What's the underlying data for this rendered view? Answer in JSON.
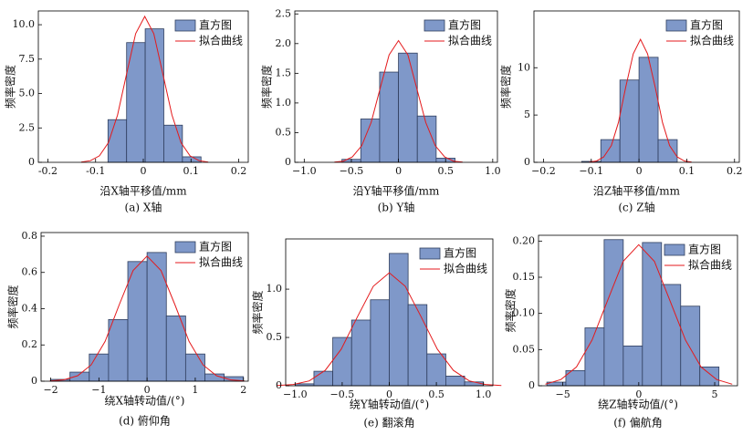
{
  "chart_data": [
    {
      "type": "histogram",
      "title": "(a) X轴",
      "x_label": "沿X轴平移值/mm",
      "y_label": "频率密度",
      "bins": [
        -0.074,
        -0.035,
        0.004,
        0.043,
        0.082,
        0.121
      ],
      "series": [
        {
          "name": "直方图",
          "color": "#7f98c9",
          "values": [
            3.1,
            8.7,
            9.7,
            2.7,
            0.4
          ]
        },
        {
          "name": "拟合曲线",
          "color": "#e41a1c",
          "type": "line",
          "x": [
            -0.13,
            -0.111,
            -0.092,
            -0.073,
            -0.054,
            -0.035,
            -0.016,
            0.003,
            0.022,
            0.041,
            0.06,
            0.079,
            0.098,
            0.117,
            0.136
          ],
          "values": [
            0.02,
            0.12,
            0.47,
            1.43,
            3.44,
            6.43,
            9.35,
            10.6,
            9.35,
            6.43,
            3.44,
            1.43,
            0.47,
            0.12,
            0.02
          ]
        }
      ],
      "xlim": [
        -0.22,
        0.22
      ],
      "xticks": [
        -0.2,
        -0.1,
        0,
        0.1,
        0.2
      ],
      "ylim": [
        0,
        11
      ],
      "yticks": [
        0,
        2.5,
        {
          "value": 5,
          "label": "5.0"
        },
        7.5,
        {
          "value": 10,
          "label": "10.0"
        }
      ],
      "legend": "upper right"
    },
    {
      "type": "histogram",
      "title": "(b) Y轴",
      "x_label": "沿Y轴平移值/mm",
      "y_label": "频率密度",
      "bins": [
        -0.6,
        -0.4,
        -0.2,
        0,
        0.2,
        0.4,
        0.6
      ],
      "series": [
        {
          "name": "直方图",
          "color": "#7f98c9",
          "values": [
            0.05,
            0.73,
            1.52,
            1.84,
            0.78,
            0.07
          ]
        },
        {
          "name": "拟合曲线",
          "color": "#e41a1c",
          "type": "line",
          "x": [
            -0.68,
            -0.585,
            -0.49,
            -0.39,
            -0.29,
            -0.195,
            -0.1,
            0,
            0.1,
            0.195,
            0.29,
            0.39,
            0.49,
            0.585,
            0.68
          ],
          "values": [
            0.005,
            0.02,
            0.09,
            0.28,
            0.67,
            1.24,
            1.81,
            2.05,
            1.81,
            1.24,
            0.67,
            0.28,
            0.09,
            0.02,
            0.005
          ]
        }
      ],
      "xlim": [
        -1.1,
        1.05
      ],
      "xticks": [
        {
          "value": -1,
          "label": "−1.0"
        },
        {
          "value": -0.5,
          "label": "−0.5"
        },
        0,
        0.5,
        {
          "value": 1,
          "label": "1.0"
        }
      ],
      "ylim": [
        0,
        2.55
      ],
      "yticks": [
        0,
        0.5,
        {
          "value": 1,
          "label": "1.0"
        },
        1.5,
        {
          "value": 2,
          "label": "2.0"
        },
        2.5
      ],
      "legend": "upper right"
    },
    {
      "type": "histogram",
      "title": "(c) Z轴",
      "x_label": "沿Z轴平移值/mm",
      "y_label": "频率密度",
      "bins": [
        -0.12,
        -0.08,
        -0.04,
        0,
        0.04,
        0.08
      ],
      "series": [
        {
          "name": "直方图",
          "color": "#7f98c9",
          "values": [
            0.1,
            2.4,
            8.7,
            11.1,
            2.4
          ]
        },
        {
          "name": "拟合曲线",
          "color": "#e41a1c",
          "type": "line",
          "x": [
            -0.104,
            -0.089,
            -0.074,
            -0.058,
            -0.043,
            -0.028,
            -0.012,
            0.003,
            0.018,
            0.034,
            0.049,
            0.064,
            0.08,
            0.095,
            0.11
          ],
          "values": [
            0.03,
            0.14,
            0.57,
            1.76,
            4.22,
            7.92,
            11.47,
            13.0,
            11.47,
            7.92,
            4.22,
            1.76,
            0.57,
            0.14,
            0.03
          ]
        }
      ],
      "xlim": [
        -0.22,
        0.21
      ],
      "xticks": [
        {
          "value": -0.2,
          "label": "−0.2"
        },
        {
          "value": -0.1,
          "label": "−0.1"
        },
        0,
        0.1,
        0.2
      ],
      "ylim": [
        0,
        16
      ],
      "yticks": [
        0,
        5,
        10
      ],
      "legend": "upper right"
    },
    {
      "type": "histogram",
      "title": "(d) 俯仰角",
      "x_label": "绕X轴转动值/(°)",
      "y_label": "频率密度",
      "bins": [
        -2,
        -1.6,
        -1.2,
        -0.8,
        -0.4,
        0,
        0.4,
        0.8,
        1.2,
        1.6,
        2
      ],
      "series": [
        {
          "name": "直方图",
          "color": "#7f98c9",
          "values": [
            0.01,
            0.05,
            0.15,
            0.34,
            0.66,
            0.71,
            0.36,
            0.15,
            0.04,
            0.025
          ]
        },
        {
          "name": "拟合曲线",
          "color": "#e41a1c",
          "type": "line",
          "x": [
            -2.02,
            -1.73,
            -1.44,
            -1.16,
            -0.87,
            -0.58,
            -0.29,
            0,
            0.29,
            0.58,
            0.87,
            1.16,
            1.44,
            1.73,
            2.02
          ],
          "values": [
            0.0015,
            0.0076,
            0.03,
            0.09,
            0.22,
            0.42,
            0.61,
            0.69,
            0.61,
            0.42,
            0.22,
            0.09,
            0.03,
            0.0076,
            0.0015
          ]
        }
      ],
      "xlim": [
        -2.2,
        2.1
      ],
      "xticks": [
        {
          "value": -2,
          "label": "−2"
        },
        {
          "value": -1,
          "label": "−1"
        },
        0,
        1,
        2
      ],
      "ylim": [
        0,
        0.82
      ],
      "yticks": [
        0,
        0.2,
        0.4,
        0.6,
        0.8
      ],
      "legend": "upper right"
    },
    {
      "type": "histogram",
      "title": "(e) 翻滚角",
      "x_label": "绕Y轴转动值/(°)",
      "y_label": "频率密度",
      "bins": [
        -1,
        -0.8,
        -0.6,
        -0.4,
        -0.2,
        0,
        0.2,
        0.4,
        0.6,
        0.8,
        1
      ],
      "series": [
        {
          "name": "直方图",
          "color": "#7f98c9",
          "values": [
            0.02,
            0.15,
            0.5,
            0.68,
            0.89,
            1.37,
            0.84,
            0.33,
            0.1,
            0.04
          ]
        },
        {
          "name": "拟合曲线",
          "color": "#e41a1c",
          "type": "line",
          "x": [
            -1.19,
            -1.02,
            -0.85,
            -0.68,
            -0.51,
            -0.34,
            -0.17,
            0,
            0.17,
            0.34,
            0.51,
            0.68,
            0.85,
            1.02,
            1.19
          ],
          "values": [
            0.0026,
            0.013,
            0.05,
            0.16,
            0.38,
            0.71,
            1.03,
            1.17,
            1.03,
            0.71,
            0.38,
            0.16,
            0.05,
            0.013,
            0.0026
          ]
        }
      ],
      "xlim": [
        -1.1,
        1.1
      ],
      "xticks": [
        {
          "value": -1,
          "label": "−1.0"
        },
        {
          "value": -0.5,
          "label": "−0.5"
        },
        0,
        0.5,
        {
          "value": 1,
          "label": "1.0"
        }
      ],
      "ylim": [
        0,
        1.52
      ],
      "yticks": [
        0,
        0.5,
        {
          "value": 1,
          "label": "1.0"
        }
      ],
      "legend": "upper right"
    },
    {
      "type": "histogram",
      "title": "(f) 偏航角",
      "x_label": "绕Z轴转动值/(°)",
      "y_label": "频率密度",
      "bins": [
        -6.05,
        -4.8,
        -3.54,
        -2.28,
        -1.02,
        0.24,
        1.5,
        2.76,
        4.02,
        5.28
      ],
      "series": [
        {
          "name": "直方图",
          "color": "#7f98c9",
          "values": [
            0.005,
            0.021,
            0.08,
            0.202,
            0.055,
            0.198,
            0.14,
            0.11,
            0.026
          ]
        },
        {
          "name": "拟合曲线",
          "color": "#e41a1c",
          "type": "line",
          "x": [
            -6.15,
            -5.13,
            -4.1,
            -3.08,
            -2.05,
            -1.03,
            0,
            1.03,
            2.05,
            3.08,
            4.1,
            5.13,
            6.15
          ],
          "values": [
            0.0022,
            0.0086,
            0.026,
            0.063,
            0.118,
            0.172,
            0.195,
            0.172,
            0.118,
            0.063,
            0.026,
            0.0086,
            0.0022
          ]
        }
      ],
      "xlim": [
        -6.6,
        6.5
      ],
      "xticks": [
        {
          "value": -5,
          "label": "−5"
        },
        0,
        5
      ],
      "ylim": [
        0,
        0.208
      ],
      "yticks": [
        0,
        0.05,
        {
          "value": 0.1,
          "label": "0.10"
        },
        0.15,
        {
          "value": 0.2,
          "label": "0.20"
        }
      ],
      "legend": "upper right"
    }
  ]
}
